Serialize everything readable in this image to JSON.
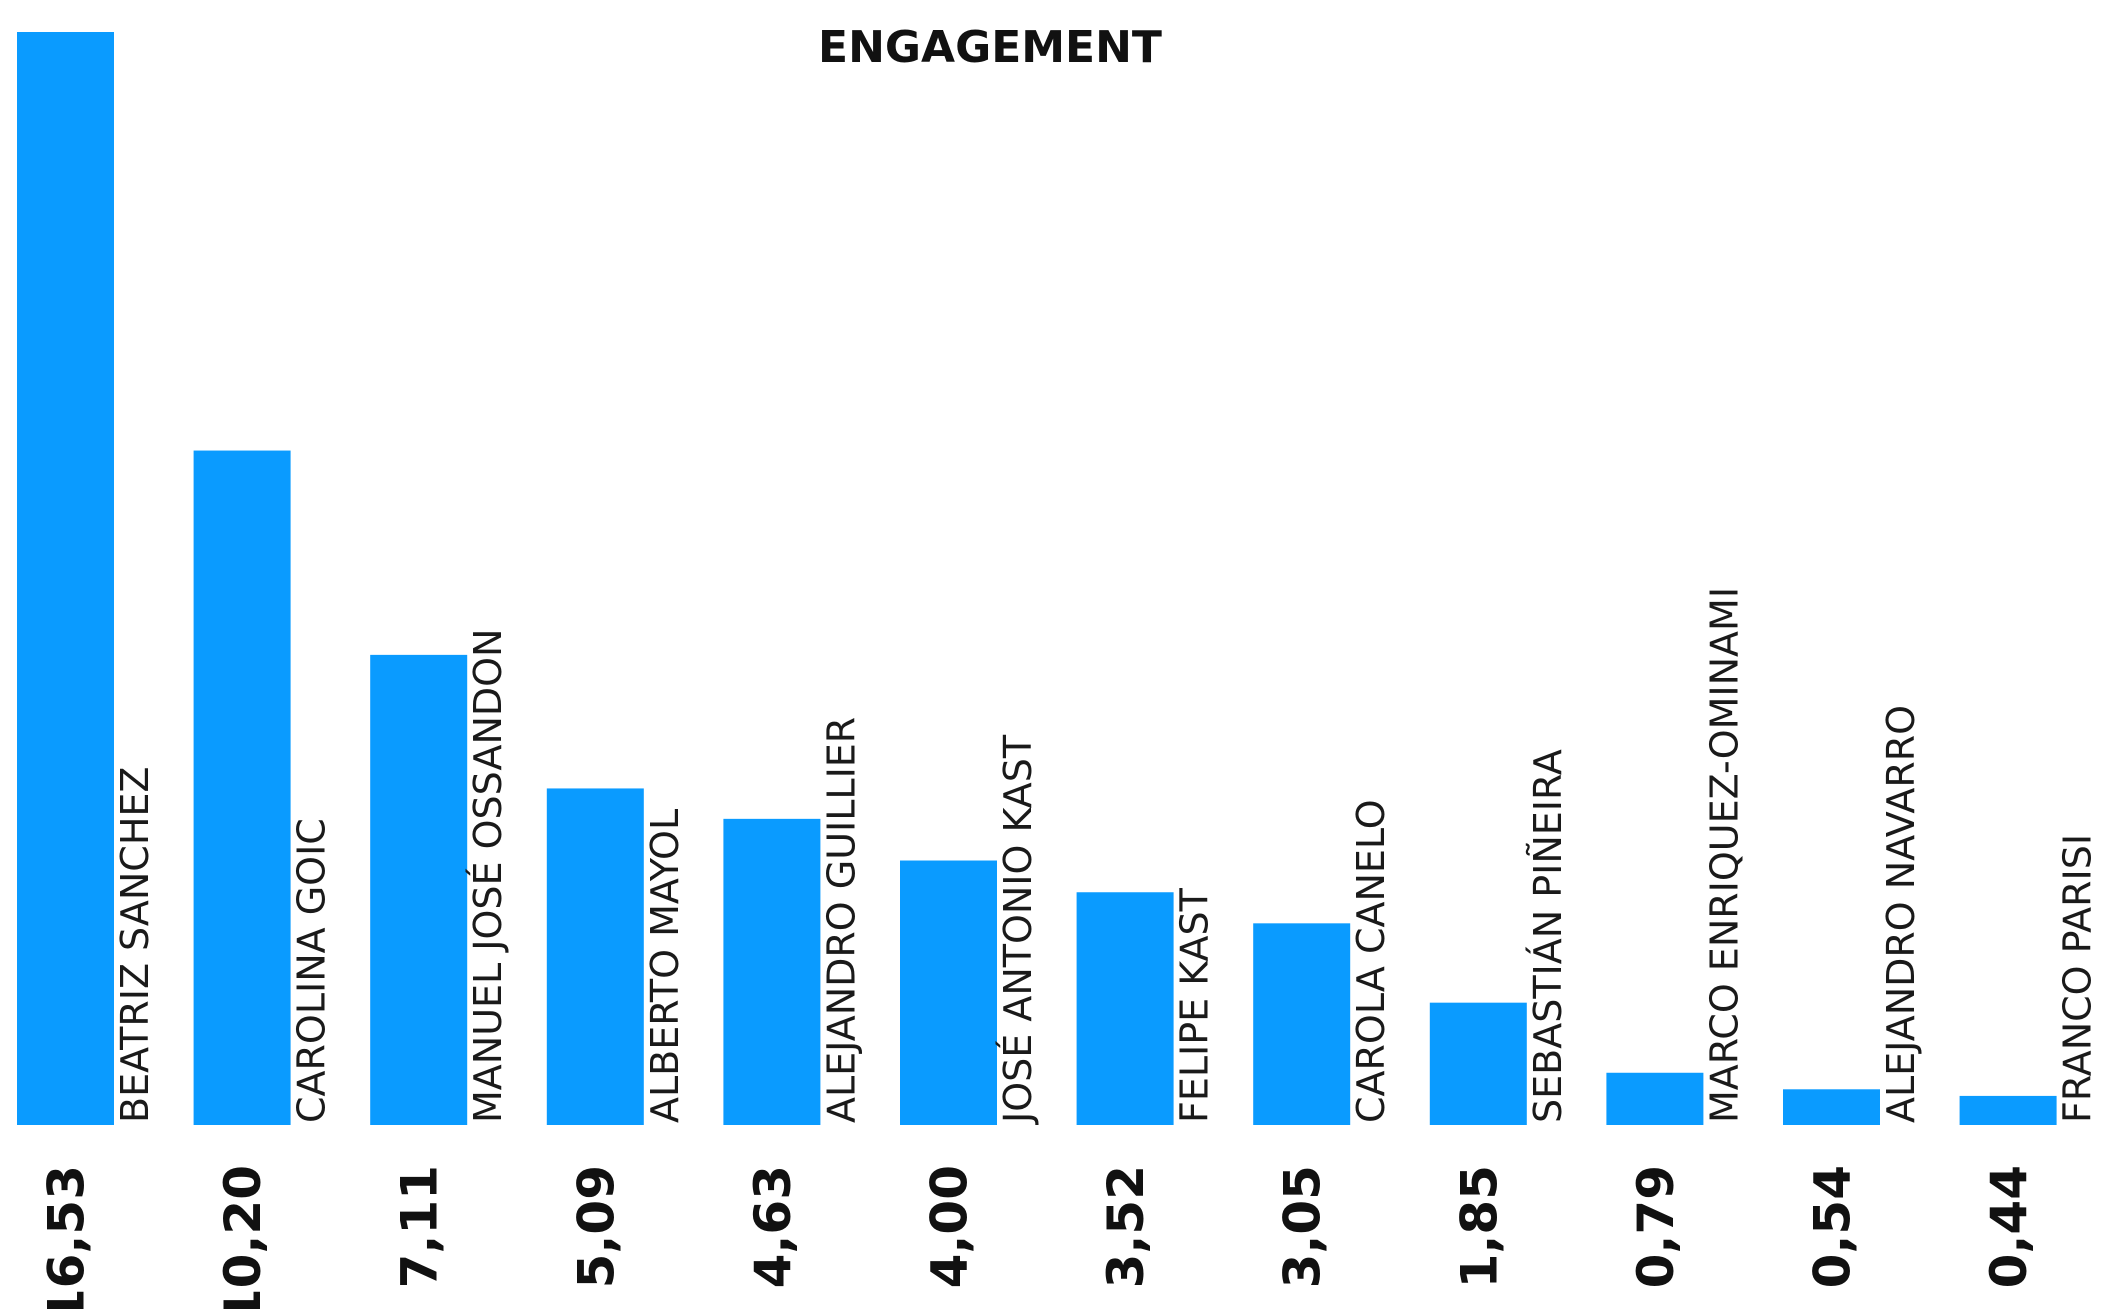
{
  "chart_data": {
    "type": "bar",
    "title": "ENGAGEMENT",
    "categories": [
      "BEATRIZ SANCHEZ",
      "CAROLINA GOIC",
      "MANUEL JOSÉ OSSANDON",
      "ALBERTO MAYOL",
      "ALEJANDRO GUILLIER",
      "JOSÉ ANTONIO KAST",
      "FELIPE KAST",
      "CAROLA CANELO",
      "SEBASTIÁN PIÑEIRA",
      "MARCO ENRIQUEZ-OMINAMI",
      "ALEJANDRO NAVARRO",
      "FRANCO PARISI"
    ],
    "values": [
      16.53,
      10.2,
      7.11,
      5.09,
      4.63,
      4.0,
      3.52,
      3.05,
      1.85,
      0.79,
      0.54,
      0.44
    ],
    "value_labels": [
      "16,53",
      "10,20",
      "7,11",
      "5,09",
      "4,63",
      "4,00",
      "3,52",
      "3,05",
      "1,85",
      "0,79",
      "0,54",
      "0,44"
    ],
    "ylim": [
      0,
      16.53
    ],
    "grid": false,
    "legend": "none",
    "bar_color": "#0A9BFF"
  }
}
